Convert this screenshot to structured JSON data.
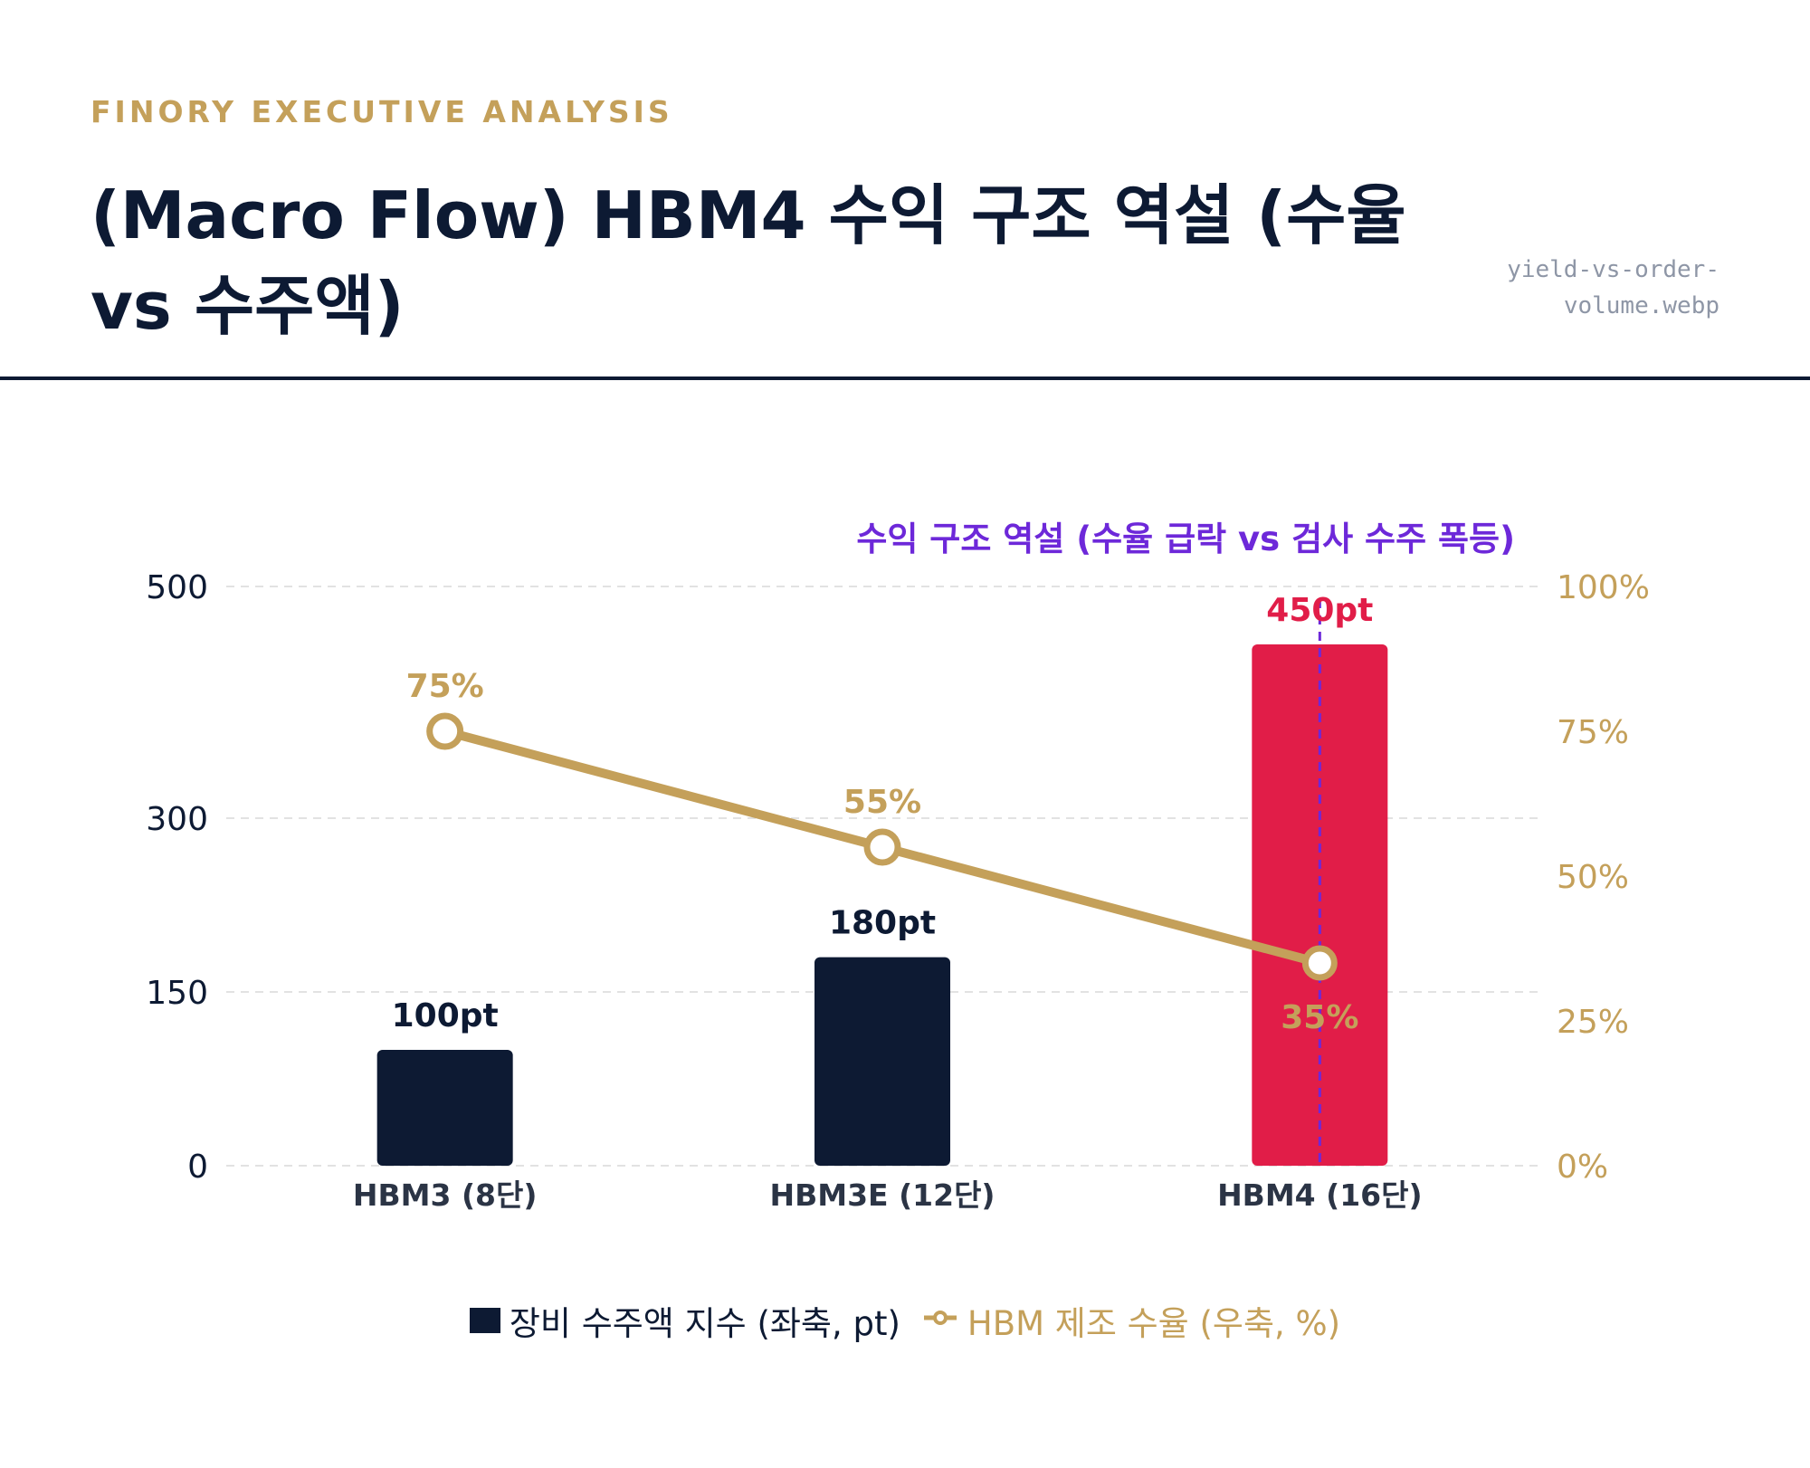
{
  "header": {
    "eyebrow": "FINORY EXECUTIVE ANALYSIS",
    "title": "(Macro Flow) HBM4 수익 구조 역설 (수율 vs 수주액)",
    "filename": "yield-vs-order-volume.webp"
  },
  "colors": {
    "navy": "#0d1a33",
    "gold": "#c4a05a",
    "red": "#e11d48",
    "purple": "#6d28d9",
    "grid": "#e2e2e2"
  },
  "chart_data": {
    "type": "bar",
    "categories": [
      "HBM3 (8단)",
      "HBM3E (12단)",
      "HBM4 (16단)"
    ],
    "annotation": "수익 구조 역설 (수율 급락 vs 검사 수주 폭등)",
    "left_axis": {
      "ticks": [
        0,
        150,
        300,
        500
      ],
      "tick_labels": [
        "0",
        "150",
        "300",
        "500"
      ],
      "ylim": [
        0,
        500
      ]
    },
    "right_axis": {
      "ticks": [
        0,
        25,
        50,
        75,
        100
      ],
      "tick_labels": [
        "0%",
        "25%",
        "50%",
        "75%",
        "100%"
      ],
      "ylim": [
        0,
        100
      ]
    },
    "series": [
      {
        "name": "장비 수주액 지수 (좌축, pt)",
        "type": "bar",
        "axis": "left",
        "values": [
          100,
          180,
          450
        ],
        "labels": [
          "100pt",
          "180pt",
          "450pt"
        ],
        "colors": [
          "#0d1a33",
          "#0d1a33",
          "#e11d48"
        ]
      },
      {
        "name": "HBM 제조 수율 (우축, %)",
        "type": "line",
        "axis": "right",
        "values": [
          75,
          55,
          35
        ],
        "labels": [
          "75%",
          "55%",
          "35%"
        ],
        "color": "#c4a05a"
      }
    ],
    "highlight_category": "HBM4 (16단)",
    "grid": true,
    "legend": "bottom-center"
  }
}
